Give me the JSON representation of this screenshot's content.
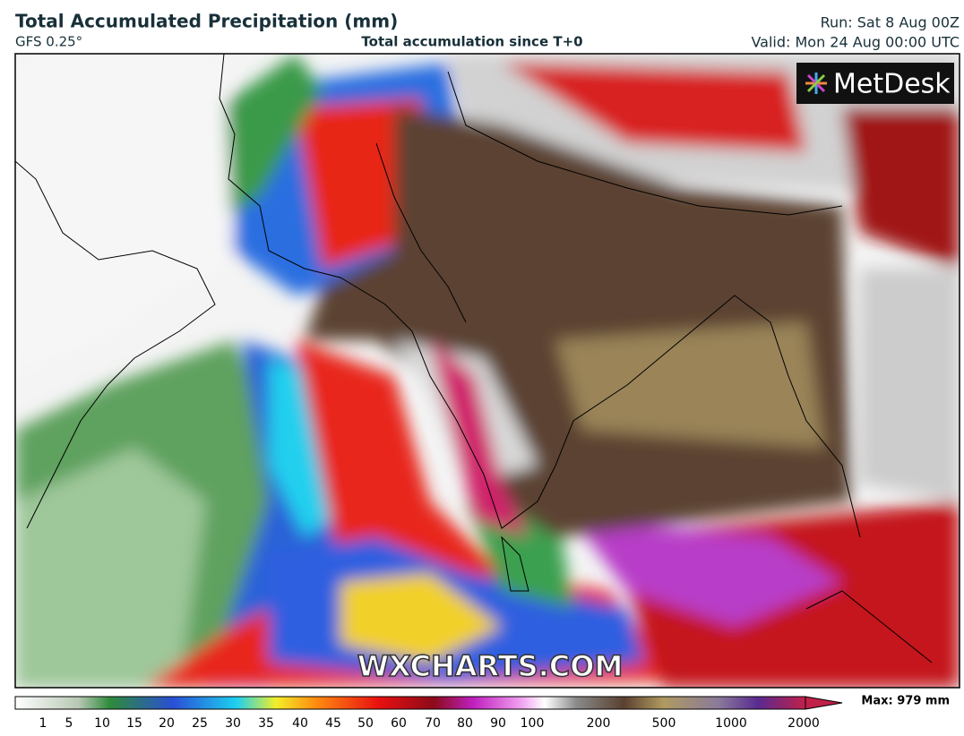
{
  "header": {
    "title": "Total Accumulated Precipitation (mm)",
    "model": "GFS 0.25°",
    "subtitle": "Total accumulation since T+0",
    "run": "Run: Sat 8 Aug 00Z",
    "valid": "Valid: Mon 24 Aug 00:00 UTC"
  },
  "map": {
    "logo": "MetDesk",
    "watermark": "WXCHARTS.COM"
  },
  "legend": {
    "labels": [
      "1",
      "5",
      "10",
      "15",
      "20",
      "25",
      "30",
      "35",
      "40",
      "45",
      "50",
      "60",
      "70",
      "80",
      "90",
      "100",
      "200",
      "500",
      "1000",
      "2000"
    ],
    "max": "Max: 979 mm"
  }
}
